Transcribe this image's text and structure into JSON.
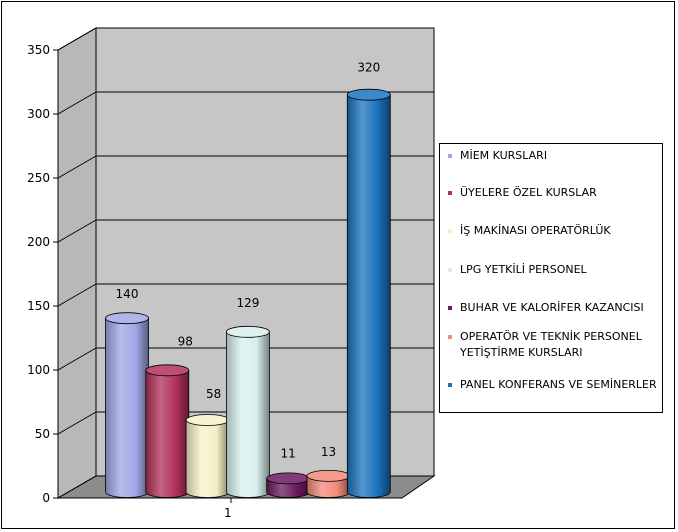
{
  "chart_data": {
    "type": "bar",
    "categories": [
      "1"
    ],
    "ylim": [
      0,
      350
    ],
    "yticks": [
      0,
      50,
      100,
      150,
      200,
      250,
      300,
      350
    ],
    "grid": true,
    "legend_position": "right",
    "series": [
      {
        "name": "MİEM KURSLARI",
        "values": [
          140
        ],
        "color": "#9fa8e6"
      },
      {
        "name": "ÜYELERE ÖZEL KURSLAR",
        "values": [
          98
        ],
        "color": "#b2305a"
      },
      {
        "name": "İŞ MAKİNASI OPERATÖRLÜK",
        "values": [
          58
        ],
        "color": "#f6f0c8"
      },
      {
        "name": "LPG YETKİLİ PERSONEL",
        "values": [
          129
        ],
        "color": "#d7efee"
      },
      {
        "name": "BUHAR VE KALORİFER KAZANCISI",
        "values": [
          11
        ],
        "color": "#6a1a5e"
      },
      {
        "name": "OPERATÖR VE TEKNİK PERSONEL YETİŞTİRME KURSLARI",
        "values": [
          13
        ],
        "color": "#f3897a"
      },
      {
        "name": "PANEL  KONFERANS VE SEMİNERLER",
        "values": [
          320
        ],
        "color": "#1a73c0"
      }
    ]
  }
}
